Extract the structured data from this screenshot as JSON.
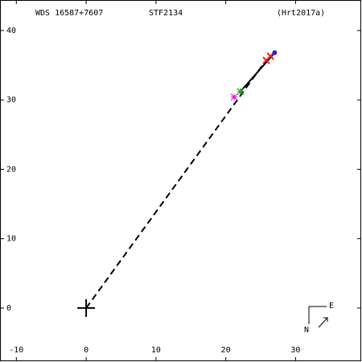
{
  "chart_data": {
    "type": "scatter",
    "titles": [
      "WDS 16587+7607",
      "STF2134",
      "(Hrt2017a)"
    ],
    "xlim": [
      -12.34,
      39.4
    ],
    "ylim": [
      -7.66,
      44.4
    ],
    "xticks": [
      -10,
      0,
      10,
      20,
      30
    ],
    "yticks": [
      0,
      10,
      20,
      30,
      40
    ],
    "points": {
      "x": [
        21.2,
        22.1,
        25.8,
        26.4,
        27.0
      ],
      "y": [
        30.4,
        31.2,
        35.7,
        36.3,
        36.8
      ],
      "colors": [
        "#e020e0",
        "#20a020",
        "#e02020",
        "#e02020",
        "#2020e0"
      ],
      "markers": [
        "asterisk",
        "asterisk",
        "x",
        "x",
        "dot"
      ]
    },
    "orbit": {
      "x": [
        22.1,
        27.0
      ],
      "y": [
        31.2,
        36.8
      ],
      "color": "#000000"
    },
    "separation": {
      "x": [
        0,
        25.7
      ],
      "y": [
        0,
        35.6
      ],
      "color": "#000000",
      "dashed": true
    },
    "primary": {
      "x": 0,
      "y": 0
    },
    "compass": {
      "east": "E",
      "north": "N"
    }
  }
}
